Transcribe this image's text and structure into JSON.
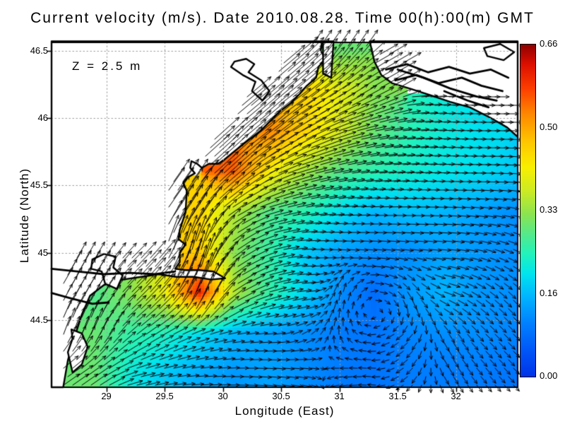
{
  "title": "Current velocity (m/s). Date 2010.08.28. Time 00(h):00(m) GMT",
  "annotation": "Z = 2.5 m",
  "axes": {
    "xlabel": "Longitude (East)",
    "ylabel": "Latitude (North)",
    "x_ticks": [
      {
        "v": 29,
        "label": "29"
      },
      {
        "v": 29.5,
        "label": "29.5"
      },
      {
        "v": 30,
        "label": "30"
      },
      {
        "v": 30.5,
        "label": "30.5"
      },
      {
        "v": 31,
        "label": "31"
      },
      {
        "v": 31.5,
        "label": "31.5"
      },
      {
        "v": 32,
        "label": "32"
      }
    ],
    "y_ticks": [
      {
        "v": 46.5,
        "label": "46.5"
      },
      {
        "v": 46,
        "label": "46"
      },
      {
        "v": 45.5,
        "label": "45.5"
      },
      {
        "v": 45,
        "label": "45"
      },
      {
        "v": 44.5,
        "label": "44.5"
      }
    ],
    "grid": true,
    "grid_color": "#999999",
    "frame_color": "#000000"
  },
  "colorbar": {
    "ticks": [
      "0.66",
      "0.50",
      "0.33",
      "0.16",
      "0.00"
    ],
    "vmin": 0.0,
    "vmax": 0.66
  },
  "chart_data": {
    "type": "heatmap",
    "subtype": "vector-field-map",
    "units": "m/s",
    "lon_range": [
      28.53,
      32.53
    ],
    "lat_range": [
      44.0,
      46.562
    ],
    "value_range": [
      0.0,
      0.66
    ],
    "colormap_stops": [
      [
        0.0,
        "#0033e8"
      ],
      [
        0.08,
        "#0057f8"
      ],
      [
        0.16,
        "#0080ff"
      ],
      [
        0.24,
        "#00b4ff"
      ],
      [
        0.31,
        "#00e4ee"
      ],
      [
        0.37,
        "#22f2bb"
      ],
      [
        0.43,
        "#55e98a"
      ],
      [
        0.49,
        "#8ce34f"
      ],
      [
        0.56,
        "#cdeb22"
      ],
      [
        0.63,
        "#f8ef00"
      ],
      [
        0.71,
        "#ffc400"
      ],
      [
        0.79,
        "#ff8800"
      ],
      [
        0.87,
        "#fb3c00"
      ],
      [
        0.94,
        "#dd0f00"
      ],
      [
        1.0,
        "#8f0000"
      ]
    ],
    "grid": {
      "lon0": 28.6,
      "dlon": 0.3,
      "ncols": 14,
      "lat0": 46.5,
      "dlat": 0.3,
      "nrows": 9,
      "speed": [
        [
          null,
          null,
          null,
          null,
          null,
          null,
          null,
          null,
          0.3,
          null,
          null,
          null,
          null,
          null
        ],
        [
          null,
          null,
          null,
          null,
          null,
          null,
          null,
          0.45,
          0.4,
          0.32,
          null,
          null,
          null,
          null
        ],
        [
          null,
          null,
          null,
          null,
          null,
          null,
          0.52,
          0.45,
          0.38,
          0.3,
          0.25,
          0.22,
          0.2,
          null
        ],
        [
          null,
          null,
          null,
          null,
          null,
          0.55,
          0.42,
          0.34,
          0.28,
          0.25,
          0.23,
          0.21,
          0.2,
          0.18
        ],
        [
          null,
          null,
          null,
          null,
          0.45,
          0.35,
          0.28,
          0.25,
          0.2,
          0.16,
          0.17,
          0.16,
          0.14,
          0.12
        ],
        [
          null,
          null,
          null,
          null,
          0.46,
          0.32,
          0.26,
          0.18,
          0.14,
          0.12,
          0.12,
          0.14,
          0.13,
          0.12
        ],
        [
          null,
          0.28,
          0.32,
          0.4,
          0.6,
          0.35,
          0.26,
          0.19,
          0.12,
          0.08,
          0.13,
          0.16,
          0.13,
          0.12
        ],
        [
          null,
          0.3,
          0.26,
          0.24,
          0.2,
          0.16,
          0.14,
          0.12,
          0.1,
          0.09,
          0.11,
          0.12,
          0.12,
          0.11
        ],
        [
          null,
          0.3,
          0.22,
          0.18,
          0.15,
          0.13,
          0.14,
          0.12,
          0.1,
          0.09,
          0.1,
          0.1,
          0.1,
          0.09
        ]
      ],
      "dir_deg_ccw_from_east": [
        [
          0,
          0,
          0,
          0,
          0,
          0,
          0,
          0,
          55,
          0,
          0,
          0,
          0,
          0
        ],
        [
          0,
          0,
          0,
          0,
          0,
          0,
          0,
          40,
          35,
          30,
          0,
          0,
          0,
          0
        ],
        [
          0,
          0,
          0,
          0,
          0,
          0,
          40,
          28,
          18,
          10,
          5,
          2,
          0,
          0
        ],
        [
          0,
          0,
          0,
          0,
          0,
          42,
          25,
          15,
          10,
          6,
          4,
          2,
          0,
          -5
        ],
        [
          0,
          0,
          0,
          0,
          55,
          30,
          15,
          8,
          5,
          2,
          0,
          -3,
          -8,
          -12
        ],
        [
          0,
          0,
          0,
          0,
          75,
          35,
          15,
          0,
          -5,
          -5,
          -8,
          -5,
          -15,
          -25
        ],
        [
          0,
          60,
          45,
          50,
          70,
          30,
          15,
          5,
          80,
          0,
          -60,
          -20,
          -35,
          -45
        ],
        [
          0,
          70,
          40,
          30,
          20,
          10,
          5,
          30,
          90,
          185,
          -135,
          -60,
          -45,
          -45
        ],
        [
          0,
          35,
          15,
          10,
          5,
          0,
          -5,
          -10,
          -170,
          175,
          -140,
          -60,
          -50,
          -45
        ]
      ]
    },
    "coast": {
      "land_polygons": [
        [
          [
            28.53,
            46.57
          ],
          [
            30.85,
            46.57
          ],
          [
            30.84,
            46.5
          ],
          [
            30.88,
            46.44
          ],
          [
            30.82,
            46.38
          ],
          [
            30.8,
            46.3
          ],
          [
            30.72,
            46.24
          ],
          [
            30.66,
            46.18
          ],
          [
            30.58,
            46.11
          ],
          [
            30.49,
            46.05
          ],
          [
            30.42,
            45.99
          ],
          [
            30.33,
            45.91
          ],
          [
            30.24,
            45.85
          ],
          [
            30.18,
            45.81
          ],
          [
            30.08,
            45.74
          ],
          [
            30.01,
            45.69
          ],
          [
            29.96,
            45.66
          ],
          [
            29.88,
            45.66
          ],
          [
            29.82,
            45.63
          ],
          [
            29.78,
            45.66
          ],
          [
            29.73,
            45.68
          ],
          [
            29.72,
            45.63
          ],
          [
            29.76,
            45.59
          ],
          [
            29.7,
            45.56
          ],
          [
            29.66,
            45.52
          ],
          [
            29.69,
            45.46
          ],
          [
            29.68,
            45.3
          ],
          [
            29.63,
            45.17
          ],
          [
            29.62,
            45.1
          ],
          [
            29.68,
            45.06
          ],
          [
            29.63,
            45.0
          ],
          [
            29.63,
            44.93
          ],
          [
            29.59,
            44.88
          ],
          [
            29.68,
            44.87
          ],
          [
            29.8,
            44.87
          ],
          [
            29.92,
            44.86
          ],
          [
            30.02,
            44.81
          ],
          [
            29.9,
            44.8
          ],
          [
            29.75,
            44.82
          ],
          [
            29.6,
            44.82
          ],
          [
            29.45,
            44.84
          ],
          [
            29.3,
            44.82
          ],
          [
            29.14,
            44.8
          ],
          [
            28.98,
            44.76
          ],
          [
            28.86,
            44.68
          ],
          [
            28.79,
            44.54
          ],
          [
            28.73,
            44.38
          ],
          [
            28.67,
            44.2
          ],
          [
            28.63,
            44.0
          ],
          [
            28.53,
            44.0
          ]
        ],
        [
          [
            31.26,
            46.57
          ],
          [
            32.53,
            46.57
          ],
          [
            32.53,
            45.86
          ],
          [
            32.44,
            45.93
          ],
          [
            32.3,
            46.0
          ],
          [
            32.12,
            46.08
          ],
          [
            31.95,
            46.12
          ],
          [
            31.78,
            46.17
          ],
          [
            31.6,
            46.22
          ],
          [
            31.45,
            46.26
          ],
          [
            31.36,
            46.32
          ],
          [
            31.3,
            46.42
          ],
          [
            31.28,
            46.5
          ]
        ],
        [
          [
            30.86,
            46.57
          ],
          [
            30.86,
            46.33
          ],
          [
            30.93,
            46.3
          ],
          [
            30.95,
            46.57
          ]
        ]
      ],
      "closed_contours": [
        [
          [
            30.1,
            46.42
          ],
          [
            30.2,
            46.44
          ],
          [
            30.27,
            46.4
          ],
          [
            30.22,
            46.34
          ],
          [
            30.33,
            46.28
          ],
          [
            30.4,
            46.2
          ],
          [
            30.34,
            46.13
          ],
          [
            30.25,
            46.2
          ],
          [
            30.28,
            46.27
          ],
          [
            30.17,
            46.32
          ],
          [
            30.07,
            46.38
          ]
        ],
        [
          [
            28.88,
            44.95
          ],
          [
            28.98,
            44.99
          ],
          [
            29.08,
            44.97
          ],
          [
            29.06,
            44.89
          ],
          [
            29.14,
            44.83
          ],
          [
            29.09,
            44.73
          ],
          [
            28.99,
            44.77
          ],
          [
            28.96,
            44.86
          ],
          [
            28.87,
            44.88
          ]
        ],
        [
          [
            28.7,
            44.43
          ],
          [
            28.79,
            44.4
          ],
          [
            28.84,
            44.3
          ],
          [
            28.79,
            44.17
          ],
          [
            28.71,
            44.11
          ],
          [
            28.67,
            44.26
          ],
          [
            28.71,
            44.36
          ]
        ],
        [
          [
            32.24,
            46.52
          ],
          [
            32.38,
            46.55
          ],
          [
            32.5,
            46.49
          ],
          [
            32.41,
            46.43
          ],
          [
            32.27,
            46.46
          ]
        ]
      ],
      "lines": [
        [
          [
            31.5,
            46.36
          ],
          [
            31.72,
            46.3
          ],
          [
            31.95,
            46.22
          ],
          [
            32.18,
            46.16
          ],
          [
            32.35,
            46.13
          ]
        ],
        [
          [
            31.9,
            46.2
          ],
          [
            32.1,
            46.13
          ],
          [
            32.28,
            46.08
          ]
        ],
        [
          [
            31.4,
            46.36
          ],
          [
            31.58,
            46.4
          ],
          [
            31.76,
            46.34
          ],
          [
            31.94,
            46.38
          ],
          [
            32.12,
            46.33
          ],
          [
            32.3,
            46.36
          ],
          [
            32.45,
            46.3
          ]
        ],
        [
          [
            31.48,
            46.28
          ],
          [
            31.66,
            46.32
          ],
          [
            31.85,
            46.26
          ],
          [
            32.05,
            46.3
          ],
          [
            32.22,
            46.24
          ],
          [
            32.4,
            46.2
          ]
        ],
        [
          [
            28.53,
            44.88
          ],
          [
            28.75,
            44.86
          ],
          [
            28.98,
            44.84
          ],
          [
            29.2,
            44.85
          ],
          [
            29.42,
            44.84
          ],
          [
            29.59,
            44.86
          ]
        ],
        [
          [
            28.53,
            44.7
          ],
          [
            28.7,
            44.66
          ],
          [
            28.88,
            44.62
          ],
          [
            29.02,
            44.63
          ]
        ]
      ]
    }
  }
}
